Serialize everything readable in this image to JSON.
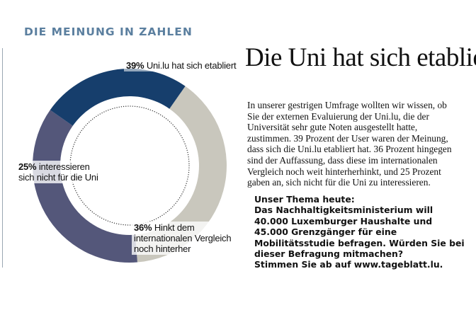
{
  "kicker": "DIE MEINUNG IN ZAHLEN",
  "headline": "Die Uni hat sich etabliert",
  "body": "In unserer gestrigen Umfrage wollten wir wissen, ob Sie der externen Evaluierung der Uni.lu, die der Universität sehr gute Noten ausgestellt hatte, zustimmen. 39 Prozent der User waren der Meinung, dass sich die Uni.lu etabliert hat. 36 Prozent hingegen sind der Auffassung, dass diese im internationalen Vergleich noch weit hinterherhinkt, und 25 Prozent gaben an, sich nicht für die Uni zu interessieren.",
  "promo": {
    "line1": "Unser Thema heute:",
    "line2": "Das Nachhaltigkeitsministerium will 40.000 Luxemburger Haushalte und 45.000 Grenzgänger für eine Mobilitätsstudie befragen. Würden Sie bei dieser Befragung mitmachen?",
    "line3": "Stimmen Sie ab auf www.tageblatt.lu."
  },
  "chart_data": {
    "type": "pie",
    "style": "donut",
    "title": "",
    "slices": [
      {
        "value": 39,
        "percent_label": "39%",
        "label": "Uni.lu hat sich etabliert",
        "color": "#c9c7bd"
      },
      {
        "value": 36,
        "percent_label": "36%",
        "label": "Hinkt dem internationalen Vergleich noch hinterher",
        "color": "#54577a"
      },
      {
        "value": 25,
        "percent_label": "25%",
        "label": "interessieren sich nicht für die Uni",
        "color": "#163e6c"
      }
    ]
  }
}
